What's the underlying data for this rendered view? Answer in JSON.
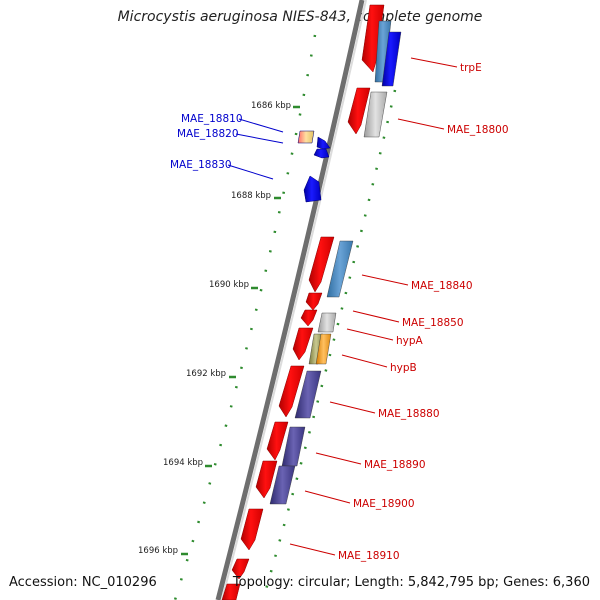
{
  "header": {
    "title": "Microcystis aeruginosa NIES-843, complete genome"
  },
  "footer": {
    "accession": "Accession: NC_010296",
    "summary": "Topology: circular; Length: 5,842,795 bp; Genes: 6,360"
  },
  "ticks": [
    "1686 kbp",
    "1688 kbp",
    "1690 kbp",
    "1692 kbp",
    "1694 kbp",
    "1696 kbp"
  ],
  "genes": [
    {
      "name": "trpE",
      "color": "#cc0000"
    },
    {
      "name": "MAE_18800",
      "color": "#cc0000"
    },
    {
      "name": "MAE_18810",
      "color": "#0000cc"
    },
    {
      "name": "MAE_18820",
      "color": "#0000cc"
    },
    {
      "name": "MAE_18830",
      "color": "#0000cc"
    },
    {
      "name": "MAE_18840",
      "color": "#cc0000"
    },
    {
      "name": "MAE_18850",
      "color": "#cc0000"
    },
    {
      "name": "hypA",
      "color": "#cc0000"
    },
    {
      "name": "hypB",
      "color": "#cc0000"
    },
    {
      "name": "MAE_18880",
      "color": "#cc0000"
    },
    {
      "name": "MAE_18890",
      "color": "#cc0000"
    },
    {
      "name": "MAE_18900",
      "color": "#cc0000"
    },
    {
      "name": "MAE_18910",
      "color": "#cc0000"
    }
  ],
  "colors": {
    "forward_cds": "#ff0000",
    "reverse_cds": "#0000ff",
    "backbone": "#808080",
    "gc_dots": "#2e8b2e"
  }
}
